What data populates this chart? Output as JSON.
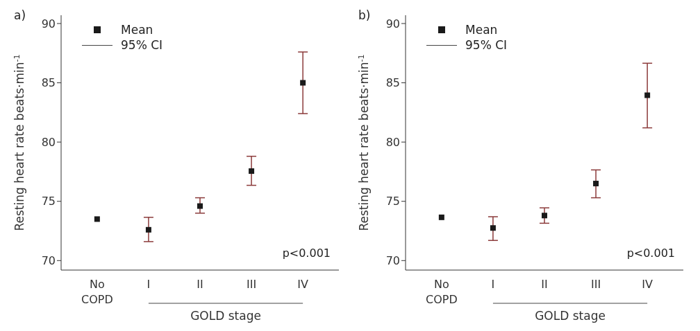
{
  "chart_data": [
    {
      "type": "scatter",
      "title": "a)",
      "ylabel": "Resting heart rate beats·min$^{-1}$",
      "xlabel": "GOLD stage",
      "categories": [
        "No COPD",
        "I",
        "II",
        "III",
        "IV"
      ],
      "ylim": [
        69.2,
        90.7
      ],
      "yticks": [
        70,
        75,
        80,
        85,
        90
      ],
      "marker": "square",
      "legend": "top left",
      "annotations": [
        "p<0.001",
        "95% CI"
      ],
      "series": [
        {
          "name": "Mean",
          "color": "#1a1a1a",
          "values": [
            73.5,
            72.6,
            74.6,
            77.55,
            85.0
          ],
          "errors": [
            null,
            [
              71.6,
              73.65
            ],
            [
              74.0,
              75.3
            ],
            [
              76.35,
              78.8
            ],
            [
              82.4,
              87.6
            ]
          ]
        }
      ]
    },
    {
      "type": "scatter",
      "title": "b)",
      "ylabel": "Resting heart rate beats·min$^{-1}$",
      "xlabel": "GOLD stage",
      "categories": [
        "No COPD",
        "I",
        "II",
        "III",
        "IV"
      ],
      "ylim": [
        69.2,
        90.7
      ],
      "yticks": [
        70,
        75,
        80,
        85,
        90
      ],
      "marker": "square",
      "legend": "top left",
      "annotations": [
        "p<0.001",
        "95% CI"
      ],
      "series": [
        {
          "name": "Mean",
          "color": "#1a1a1a",
          "values": [
            73.65,
            72.75,
            73.8,
            76.5,
            83.95
          ],
          "errors": [
            null,
            [
              71.7,
              73.7
            ],
            [
              73.15,
              74.45
            ],
            [
              75.3,
              77.65
            ],
            [
              81.2,
              86.65
            ]
          ]
        }
      ]
    }
  ]
}
